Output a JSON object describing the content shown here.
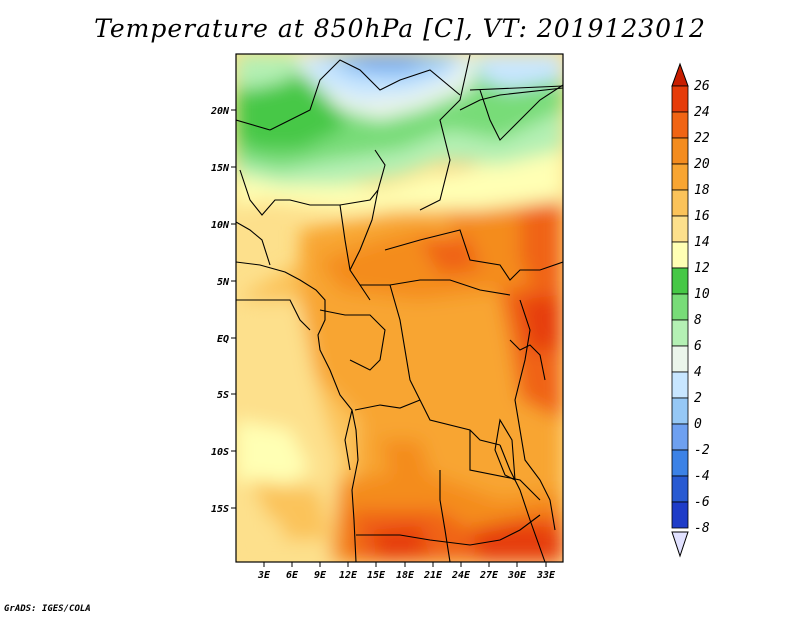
{
  "title": "Temperature at 850hPa [C], VT: 2019123012",
  "credit": "GrADS: IGES/COLA",
  "map": {
    "lat_labels": [
      "20N",
      "15N",
      "10N",
      "5N",
      "EQ",
      "5S",
      "10S",
      "15S"
    ],
    "lon_labels": [
      "3E",
      "6E",
      "9E",
      "12E",
      "15E",
      "18E",
      "21E",
      "24E",
      "27E",
      "30E",
      "33E"
    ]
  },
  "colorbar": {
    "levels": [
      "26",
      "24",
      "22",
      "20",
      "18",
      "16",
      "14",
      "12",
      "10",
      "8",
      "6",
      "4",
      "2",
      "0",
      "-2",
      "-4",
      "-6",
      "-8"
    ],
    "colors": [
      "#e1e1ff",
      "#0a0a78",
      "#1e3cc8",
      "#285ad2",
      "#3c82e6",
      "#6ea0f0",
      "#96c8f5",
      "#c8e6ff",
      "#ebf5eb",
      "#b4f0b4",
      "#78dc78",
      "#46c846",
      "#ffffb4",
      "#fde08c",
      "#fbc35a",
      "#f8a532",
      "#f48c1e",
      "#f06414",
      "#e63c0a",
      "#c81e00"
    ]
  }
}
